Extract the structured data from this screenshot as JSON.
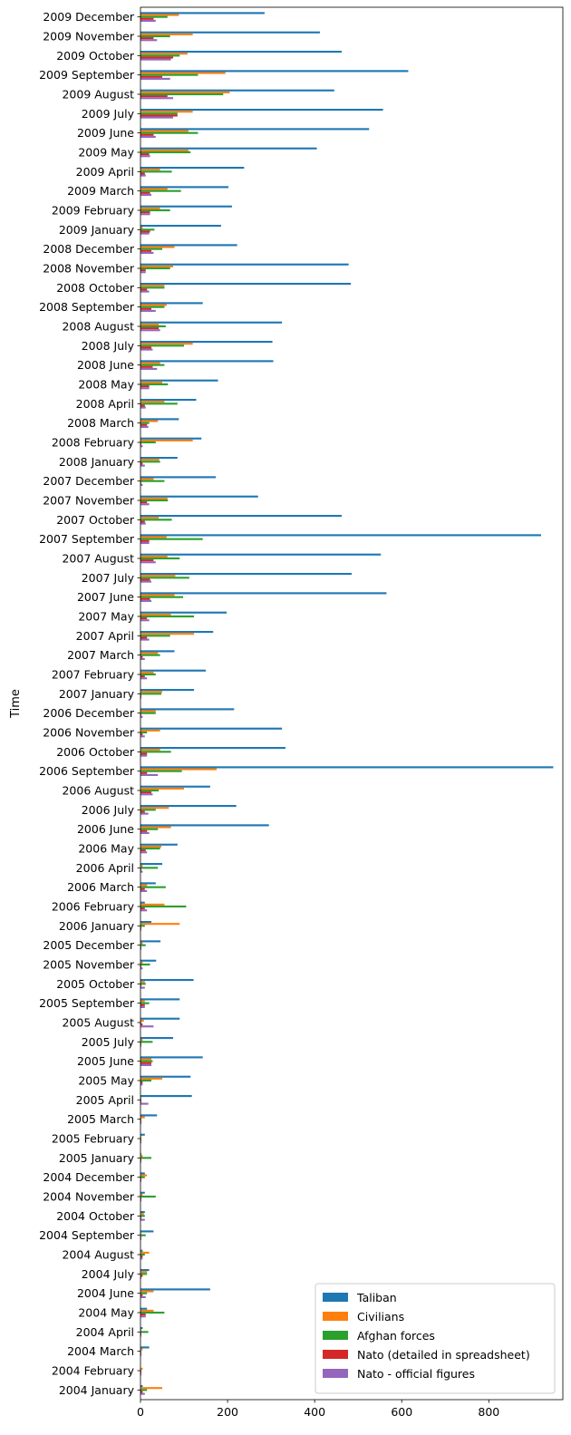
{
  "chart_data": {
    "type": "bar",
    "orientation": "horizontal",
    "ylabel": "Time",
    "xlabel": "",
    "xlim": [
      0,
      970
    ],
    "xticks": [
      0,
      200,
      400,
      600,
      800
    ],
    "grid": false,
    "legend_position": "bottom-right",
    "categories": [
      "2004 January",
      "2004 February",
      "2004 March",
      "2004 April",
      "2004 May",
      "2004 June",
      "2004 July",
      "2004 August",
      "2004 September",
      "2004 October",
      "2004 November",
      "2004 December",
      "2005 January",
      "2005 February",
      "2005 March",
      "2005 April",
      "2005 May",
      "2005 June",
      "2005 July",
      "2005 August",
      "2005 September",
      "2005 October",
      "2005 November",
      "2005 December",
      "2006 January",
      "2006 February",
      "2006 March",
      "2006 April",
      "2006 May",
      "2006 June",
      "2006 July",
      "2006 August",
      "2006 September",
      "2006 October",
      "2006 November",
      "2006 December",
      "2007 January",
      "2007 February",
      "2007 March",
      "2007 April",
      "2007 May",
      "2007 June",
      "2007 July",
      "2007 August",
      "2007 September",
      "2007 October",
      "2007 November",
      "2007 December",
      "2008 January",
      "2008 February",
      "2008 March",
      "2008 April",
      "2008 May",
      "2008 June",
      "2008 July",
      "2008 August",
      "2008 September",
      "2008 October",
      "2008 November",
      "2008 December",
      "2009 January",
      "2009 February",
      "2009 March",
      "2009 April",
      "2009 May",
      "2009 June",
      "2009 July",
      "2009 August",
      "2009 September",
      "2009 October",
      "2009 November",
      "2009 December"
    ],
    "series": [
      {
        "name": "Taliban",
        "color": "#1f77b4",
        "values": [
          5,
          0,
          20,
          5,
          15,
          160,
          20,
          5,
          30,
          10,
          10,
          10,
          2,
          10,
          38,
          118,
          115,
          143,
          75,
          90,
          90,
          122,
          36,
          46,
          25,
          10,
          35,
          50,
          85,
          295,
          220,
          160,
          948,
          333,
          325,
          215,
          123,
          150,
          78,
          167,
          198,
          565,
          485,
          552,
          920,
          462,
          270,
          173,
          85,
          140,
          88,
          128,
          178,
          305,
          303,
          325,
          143,
          483,
          478,
          222,
          185,
          210,
          202,
          238,
          405,
          525,
          557,
          445,
          615,
          462,
          412,
          285
        ]
      },
      {
        "name": "Civilians",
        "color": "#ff7f0e",
        "values": [
          50,
          5,
          5,
          2,
          30,
          30,
          15,
          20,
          2,
          8,
          5,
          15,
          5,
          2,
          10,
          2,
          50,
          25,
          5,
          8,
          10,
          10,
          5,
          5,
          90,
          55,
          15,
          5,
          48,
          70,
          65,
          100,
          175,
          45,
          45,
          35,
          50,
          30,
          40,
          123,
          70,
          78,
          80,
          62,
          60,
          42,
          62,
          30,
          43,
          120,
          40,
          55,
          50,
          45,
          120,
          42,
          60,
          55,
          75,
          78,
          5,
          45,
          62,
          45,
          110,
          110,
          120,
          205,
          195,
          108,
          120,
          88
        ]
      },
      {
        "name": "Afghan forces",
        "color": "#2ca02c",
        "values": [
          15,
          2,
          2,
          18,
          55,
          15,
          15,
          10,
          12,
          10,
          35,
          10,
          25,
          2,
          2,
          2,
          25,
          28,
          28,
          2,
          20,
          12,
          22,
          12,
          10,
          105,
          58,
          40,
          45,
          40,
          35,
          42,
          95,
          70,
          15,
          35,
          48,
          35,
          45,
          68,
          123,
          98,
          112,
          90,
          143,
          72,
          63,
          55,
          45,
          35,
          20,
          85,
          63,
          55,
          100,
          58,
          55,
          55,
          68,
          50,
          32,
          68,
          93,
          72,
          115,
          132,
          85,
          190,
          132,
          90,
          68,
          62
        ]
      },
      {
        "name": "Nato (detailed in spreadsheet)",
        "color": "#d62728",
        "values": [
          5,
          2,
          2,
          2,
          12,
          5,
          5,
          5,
          2,
          2,
          2,
          2,
          2,
          2,
          2,
          2,
          5,
          25,
          2,
          5,
          10,
          2,
          2,
          2,
          2,
          10,
          10,
          2,
          12,
          15,
          10,
          25,
          15,
          15,
          5,
          2,
          2,
          10,
          5,
          15,
          15,
          22,
          22,
          30,
          20,
          10,
          15,
          2,
          5,
          2,
          15,
          10,
          20,
          28,
          25,
          42,
          25,
          15,
          12,
          25,
          22,
          22,
          22,
          10,
          20,
          30,
          85,
          62,
          50,
          75,
          30,
          30
        ]
      },
      {
        "name": "Nato - official figures",
        "color": "#9467bd",
        "values": [
          10,
          2,
          2,
          2,
          12,
          12,
          2,
          5,
          2,
          10,
          2,
          2,
          2,
          2,
          2,
          18,
          5,
          25,
          2,
          30,
          10,
          10,
          5,
          2,
          2,
          15,
          15,
          5,
          15,
          20,
          18,
          28,
          40,
          15,
          10,
          5,
          2,
          15,
          10,
          20,
          20,
          25,
          25,
          35,
          20,
          12,
          20,
          5,
          10,
          5,
          18,
          12,
          20,
          38,
          28,
          45,
          35,
          20,
          12,
          30,
          20,
          22,
          25,
          12,
          22,
          35,
          75,
          75,
          68,
          70,
          38,
          35
        ]
      }
    ]
  }
}
